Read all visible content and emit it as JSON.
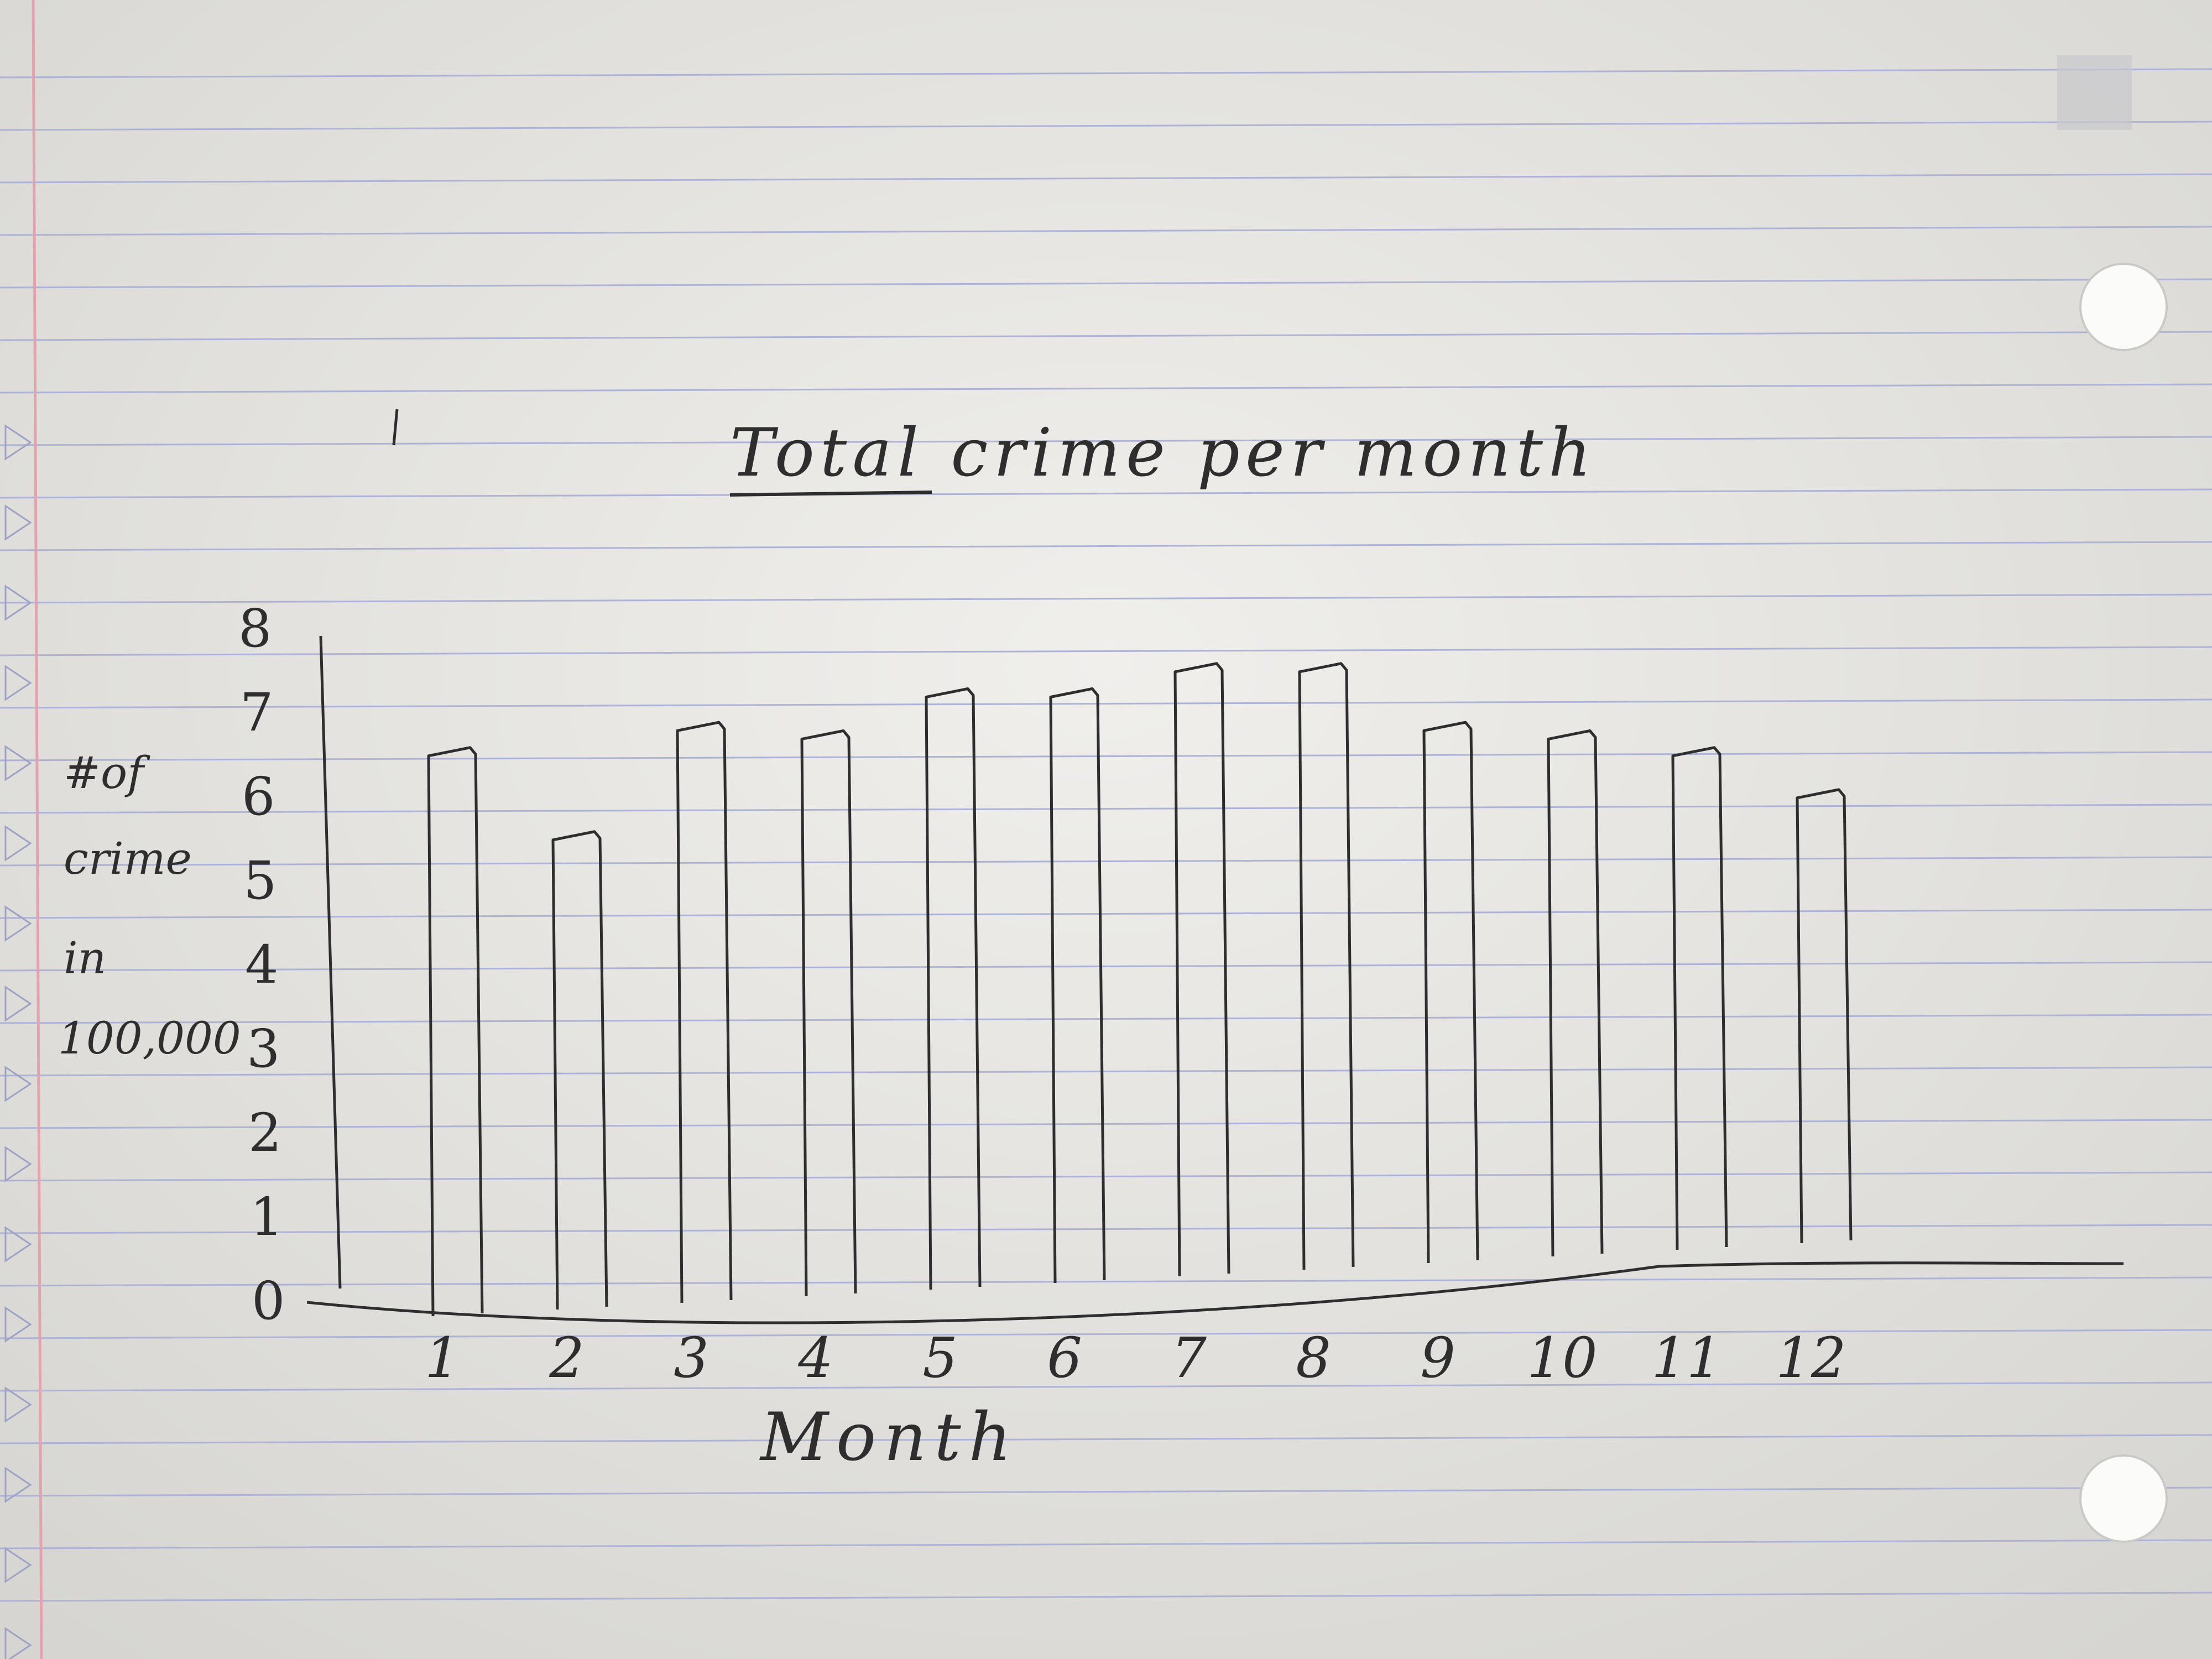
{
  "chart_data": {
    "type": "bar",
    "title": "Total crime per month",
    "xlabel": "Month",
    "ylabel": [
      "#of",
      "crime",
      "in",
      "100,000"
    ],
    "categories": [
      "1",
      "2",
      "3",
      "4",
      "5",
      "6",
      "7",
      "8",
      "9",
      "10",
      "11",
      "12"
    ],
    "values": [
      6.6,
      5.6,
      6.9,
      6.8,
      7.3,
      7.3,
      7.6,
      7.6,
      6.9,
      6.8,
      6.6,
      6.1
    ],
    "yticks": [
      "0",
      "1",
      "2",
      "3",
      "4",
      "5",
      "6",
      "7",
      "8"
    ],
    "ylim": [
      0,
      8
    ],
    "grid": false,
    "legend": "none"
  },
  "colors": {
    "paper": "#ecebe8",
    "rule_line": "#aeb3d6",
    "margin_line": "#e3a3ae",
    "pencil": "#2e2e2e"
  }
}
